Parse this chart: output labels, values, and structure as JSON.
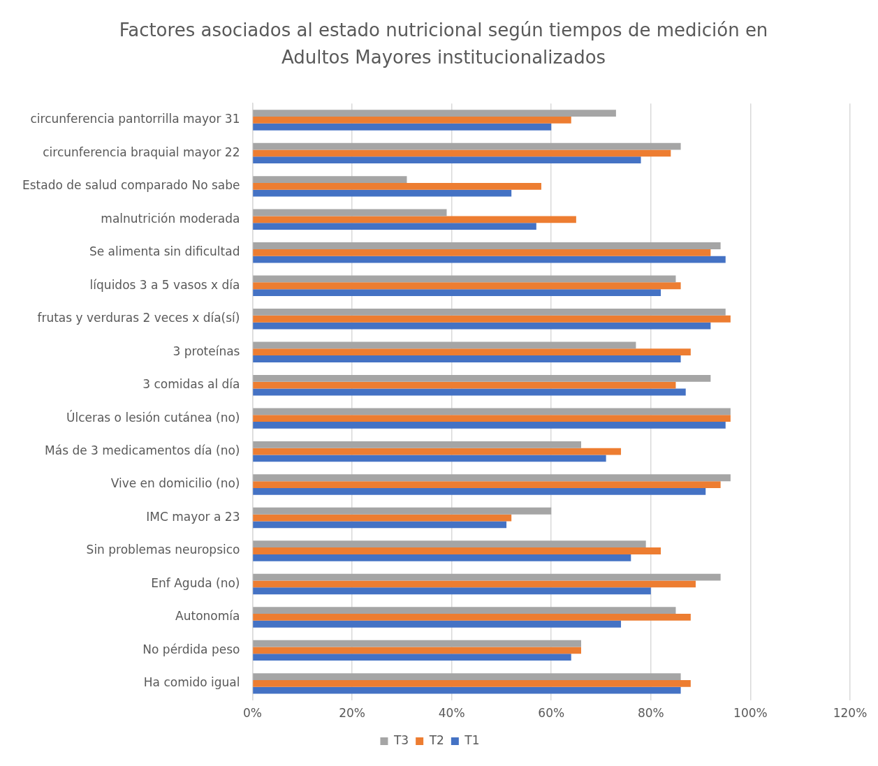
{
  "chart_data": {
    "type": "bar",
    "orientation": "horizontal",
    "title": "Factores asociados al estado nutricional según tiempos de medición en Adultos Mayores institucionalizados",
    "categories": [
      "circunferencia pantorrilla mayor 31",
      "circunferencia braquial mayor 22",
      "Estado de salud comparado No sabe",
      "malnutrición moderada",
      "Se alimenta sin dificultad",
      "líquidos 3 a 5 vasos x día",
      "frutas y verduras 2 veces x día(sí)",
      "3 proteínas",
      "3 comidas al día",
      "Úlceras o lesión cutánea (no)",
      "Más de 3 medicamentos día (no)",
      "Vive en domicilio (no)",
      "IMC mayor a 23",
      "Sin problemas neuropsico",
      "Enf Aguda (no)",
      "Autonomía",
      "No pérdida peso",
      "Ha comido igual"
    ],
    "series": [
      {
        "name": "T3",
        "color": "#a5a5a5",
        "values": [
          73,
          86,
          31,
          39,
          94,
          85,
          95,
          77,
          92,
          96,
          66,
          96,
          60,
          79,
          94,
          85,
          66,
          86
        ]
      },
      {
        "name": "T2",
        "color": "#ed7d31",
        "values": [
          64,
          84,
          58,
          65,
          92,
          86,
          96,
          88,
          85,
          96,
          74,
          94,
          52,
          82,
          89,
          88,
          66,
          88
        ]
      },
      {
        "name": "T1",
        "color": "#4472c4",
        "values": [
          60,
          78,
          52,
          57,
          95,
          82,
          92,
          86,
          87,
          95,
          71,
          91,
          51,
          76,
          80,
          74,
          64,
          86
        ]
      }
    ],
    "xlim": [
      0,
      120
    ],
    "xticks": [
      {
        "value": 0,
        "label": "0%"
      },
      {
        "value": 20,
        "label": "20%"
      },
      {
        "value": 40,
        "label": "40%"
      },
      {
        "value": 60,
        "label": "60%"
      },
      {
        "value": 80,
        "label": "80%"
      },
      {
        "value": 100,
        "label": "100%"
      },
      {
        "value": 120,
        "label": "120%"
      }
    ],
    "grid": "x",
    "legend": "bottom"
  }
}
